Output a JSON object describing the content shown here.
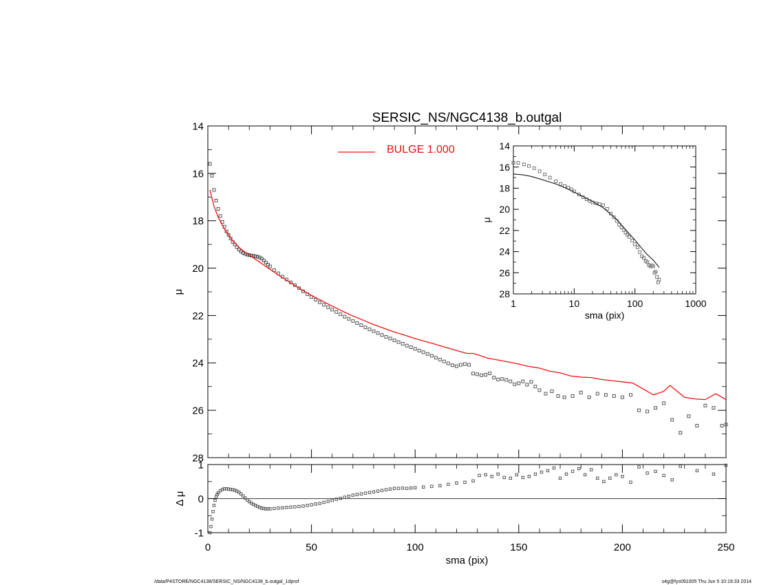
{
  "chart_data": [
    {
      "type": "scatter",
      "panel": "main",
      "title": "SERSIC_NS/NGC4138_b.outgal",
      "xlabel": "",
      "ylabel": "μ",
      "xlim": [
        0,
        250
      ],
      "ylim": [
        28,
        14
      ],
      "y_inverted": true,
      "xticks": [
        0,
        50,
        100,
        150,
        200,
        250
      ],
      "yticks": [
        14,
        16,
        18,
        20,
        22,
        24,
        26,
        28
      ],
      "legend": {
        "placement": "top-center",
        "entries": [
          {
            "label": "BULGE  1.000",
            "color": "#ee1111"
          }
        ]
      },
      "series": [
        {
          "name": "data",
          "kind": "points",
          "marker": "square",
          "color": "#444444",
          "x": [
            1,
            2,
            3,
            4,
            5,
            6,
            7,
            8,
            9,
            10,
            11,
            12,
            13,
            14,
            15,
            16,
            17,
            18,
            19,
            20,
            21,
            22,
            23,
            24,
            25,
            26,
            27,
            28,
            29,
            30,
            32,
            34,
            36,
            38,
            40,
            42,
            44,
            46,
            48,
            50,
            52,
            54,
            56,
            58,
            60,
            62,
            64,
            66,
            68,
            70,
            72,
            74,
            76,
            78,
            80,
            82,
            84,
            86,
            88,
            90,
            92,
            94,
            96,
            98,
            100,
            102,
            104,
            106,
            108,
            110,
            112,
            114,
            116,
            118,
            120,
            122,
            124,
            126,
            128,
            130,
            132,
            134,
            136,
            138,
            140,
            142,
            144,
            146,
            148,
            150,
            152,
            154,
            156,
            158,
            160,
            163,
            166,
            169,
            172,
            176,
            180,
            184,
            188,
            192,
            196,
            200,
            204,
            208,
            212,
            216,
            220,
            224,
            228,
            232,
            236,
            240,
            244,
            248,
            250
          ],
          "y": [
            15.6,
            16.1,
            16.7,
            17.15,
            17.5,
            17.8,
            18.05,
            18.25,
            18.45,
            18.6,
            18.75,
            18.9,
            19.0,
            19.12,
            19.22,
            19.3,
            19.36,
            19.4,
            19.43,
            19.45,
            19.47,
            19.48,
            19.5,
            19.52,
            19.55,
            19.6,
            19.68,
            19.77,
            19.85,
            19.93,
            20.08,
            20.22,
            20.36,
            20.48,
            20.6,
            20.72,
            20.85,
            20.98,
            21.1,
            21.22,
            21.33,
            21.44,
            21.55,
            21.65,
            21.75,
            21.85,
            21.95,
            22.05,
            22.14,
            22.23,
            22.32,
            22.41,
            22.5,
            22.58,
            22.66,
            22.74,
            22.82,
            22.9,
            22.97,
            23.05,
            23.12,
            23.19,
            23.27,
            23.34,
            23.41,
            23.48,
            23.55,
            23.62,
            23.7,
            23.78,
            23.86,
            23.94,
            24.02,
            24.1,
            24.14,
            24.08,
            24.05,
            24.08,
            24.45,
            24.48,
            24.52,
            24.5,
            24.44,
            24.62,
            24.7,
            24.68,
            24.72,
            24.78,
            24.9,
            24.86,
            24.78,
            24.92,
            24.8,
            25.0,
            25.15,
            25.3,
            25.2,
            25.4,
            25.45,
            25.4,
            25.25,
            25.45,
            25.3,
            25.35,
            25.4,
            25.45,
            25.35,
            26.0,
            26.05,
            25.9,
            25.7,
            26.4,
            26.95,
            26.25,
            26.65,
            25.8,
            25.9,
            26.65,
            26.6
          ],
          "yerr_visible": false
        },
        {
          "name": "BULGE  1.000",
          "kind": "line",
          "color": "#ee1111",
          "x": [
            1,
            3,
            5,
            8,
            12,
            16,
            20,
            25,
            30,
            35,
            40,
            45,
            50,
            55,
            60,
            65,
            70,
            75,
            80,
            85,
            90,
            95,
            100,
            105,
            110,
            115,
            120,
            125,
            128,
            130,
            135,
            140,
            145,
            150,
            155,
            160,
            165,
            170,
            175,
            180,
            185,
            190,
            195,
            200,
            205,
            210,
            215,
            220,
            223,
            225,
            230,
            235,
            240,
            245,
            250
          ],
          "y": [
            16.7,
            17.4,
            17.85,
            18.35,
            18.85,
            19.2,
            19.45,
            19.75,
            20.05,
            20.35,
            20.62,
            20.9,
            21.15,
            21.38,
            21.6,
            21.82,
            22.02,
            22.2,
            22.38,
            22.54,
            22.7,
            22.83,
            22.97,
            23.1,
            23.22,
            23.35,
            23.48,
            23.6,
            23.6,
            23.65,
            23.8,
            23.88,
            23.96,
            24.05,
            24.15,
            24.22,
            24.35,
            24.42,
            24.55,
            24.6,
            24.62,
            24.7,
            24.75,
            24.8,
            24.85,
            25.1,
            25.35,
            25.2,
            24.95,
            25.1,
            25.45,
            25.52,
            25.55,
            25.3,
            25.55
          ]
        }
      ]
    },
    {
      "type": "scatter",
      "panel": "residual",
      "xlabel": "sma (pix)",
      "ylabel": "Δ μ",
      "xlim": [
        0,
        250
      ],
      "ylim": [
        -1,
        1
      ],
      "xticks": [
        0,
        50,
        100,
        150,
        200,
        250
      ],
      "yticks": [
        -1,
        0,
        1
      ],
      "zero_line": true,
      "series": [
        {
          "name": "residual",
          "kind": "points",
          "marker": "square",
          "color": "#444444",
          "x": [
            1,
            1.5,
            2,
            2.5,
            3,
            3.5,
            4,
            4.5,
            5,
            6,
            7,
            8,
            9,
            10,
            11,
            12,
            13,
            14,
            15,
            16,
            17,
            18,
            19,
            20,
            21,
            22,
            23,
            24,
            25,
            26,
            27,
            28,
            29,
            30,
            32,
            34,
            36,
            38,
            40,
            42,
            44,
            46,
            48,
            50,
            52,
            54,
            56,
            58,
            60,
            62,
            64,
            66,
            68,
            70,
            72,
            74,
            76,
            78,
            80,
            82,
            84,
            86,
            88,
            90,
            92,
            94,
            96,
            98,
            100,
            104,
            108,
            112,
            116,
            120,
            124,
            128,
            131,
            134,
            137,
            140,
            143,
            146,
            149,
            152,
            155,
            158,
            161,
            164,
            167,
            170,
            173,
            176,
            179,
            182,
            185,
            188,
            191,
            194,
            197,
            200,
            204,
            208,
            212,
            216,
            220,
            224,
            228,
            236,
            244,
            250
          ],
          "y": [
            -1.0,
            -0.82,
            -0.6,
            -0.38,
            -0.2,
            -0.05,
            0.05,
            0.12,
            0.17,
            0.23,
            0.27,
            0.29,
            0.29,
            0.28,
            0.27,
            0.26,
            0.25,
            0.22,
            0.19,
            0.14,
            0.08,
            0.02,
            -0.04,
            -0.09,
            -0.13,
            -0.17,
            -0.2,
            -0.23,
            -0.26,
            -0.28,
            -0.29,
            -0.3,
            -0.3,
            -0.3,
            -0.29,
            -0.28,
            -0.27,
            -0.26,
            -0.25,
            -0.24,
            -0.23,
            -0.22,
            -0.2,
            -0.18,
            -0.16,
            -0.14,
            -0.11,
            -0.08,
            -0.05,
            -0.02,
            0.01,
            0.04,
            0.07,
            0.1,
            0.12,
            0.14,
            0.16,
            0.18,
            0.2,
            0.22,
            0.24,
            0.26,
            0.28,
            0.3,
            0.3,
            0.31,
            0.3,
            0.31,
            0.32,
            0.34,
            0.36,
            0.38,
            0.42,
            0.46,
            0.48,
            0.52,
            0.68,
            0.7,
            0.65,
            0.72,
            0.62,
            0.6,
            0.7,
            0.62,
            0.65,
            0.72,
            0.78,
            0.82,
            0.9,
            0.6,
            0.72,
            0.8,
            0.88,
            0.7,
            0.85,
            0.6,
            0.5,
            0.6,
            0.7,
            0.65,
            0.48,
            0.93,
            0.75,
            0.8,
            0.68,
            0.55,
            0.95,
            0.82,
            0.72,
            0.98
          ]
        }
      ]
    },
    {
      "type": "scatter",
      "panel": "inset",
      "xlabel": "sma (pix)",
      "ylabel": "μ",
      "x_scale": "log",
      "xlim": [
        1,
        1000
      ],
      "ylim": [
        28,
        14
      ],
      "y_inverted": true,
      "xticks": [
        1,
        10,
        100,
        1000
      ],
      "yticks": [
        14,
        16,
        18,
        20,
        22,
        24,
        26,
        28
      ],
      "series": [
        {
          "name": "data",
          "kind": "points",
          "marker": "square",
          "color": "#666666",
          "x": [
            1,
            1.2,
            1.5,
            1.8,
            2.2,
            2.7,
            3.3,
            4,
            5,
            6,
            7,
            8,
            9,
            10,
            12,
            14,
            16,
            18,
            20,
            23,
            26,
            30,
            35,
            40,
            45,
            50,
            55,
            60,
            65,
            70,
            75,
            80,
            90,
            100,
            110,
            120,
            130,
            140,
            150,
            160,
            170,
            180,
            190,
            200,
            210,
            220,
            230,
            240,
            250
          ],
          "y": [
            15.6,
            15.6,
            15.75,
            15.9,
            16.1,
            16.4,
            16.7,
            17.0,
            17.35,
            17.6,
            17.8,
            17.95,
            18.1,
            18.3,
            18.6,
            18.85,
            19.05,
            19.22,
            19.35,
            19.43,
            19.5,
            19.6,
            19.95,
            20.4,
            20.75,
            21.1,
            21.45,
            21.7,
            21.95,
            22.2,
            22.4,
            22.6,
            22.95,
            23.3,
            23.6,
            24.05,
            24.45,
            24.6,
            24.9,
            25.0,
            25.3,
            25.4,
            25.3,
            25.4,
            26.0,
            25.9,
            26.4,
            26.9,
            26.65
          ]
        },
        {
          "name": "model",
          "kind": "line",
          "color": "#000000",
          "x": [
            1,
            1.5,
            2,
            3,
            5,
            8,
            12,
            20,
            30,
            50,
            80,
            100,
            130,
            160,
            200,
            250
          ],
          "y": [
            16.65,
            16.75,
            16.9,
            17.2,
            17.6,
            18.1,
            18.6,
            19.25,
            19.85,
            20.95,
            22.3,
            22.9,
            23.7,
            24.3,
            24.8,
            25.5
          ]
        }
      ]
    }
  ],
  "footer": {
    "left": "/data/P4STORE/NGC4138/SERSIC_NS/NGC4138_b.outgal_1dprof",
    "right": "s4g@fys091005  Thu Jun  5 10:19:33 2014"
  }
}
